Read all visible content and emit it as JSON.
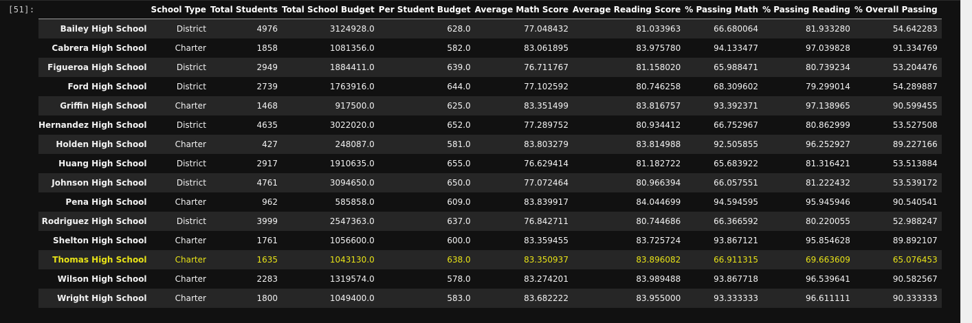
{
  "prompt": "[51]:",
  "table": {
    "index_header": "",
    "columns": [
      "School Type",
      "Total Students",
      "Total School Budget",
      "Per Student Budget",
      "Average Math Score",
      "Average Reading Score",
      "% Passing Math",
      "% Passing Reading",
      "% Overall Passing"
    ],
    "rows": [
      {
        "school": "Bailey High School",
        "type": "District",
        "students": "4976",
        "budget": "3124928.0",
        "per_student": "628.0",
        "math": "77.048432",
        "reading": "81.033963",
        "pass_math": "66.680064",
        "pass_reading": "81.933280",
        "overall": "54.642283"
      },
      {
        "school": "Cabrera High School",
        "type": "Charter",
        "students": "1858",
        "budget": "1081356.0",
        "per_student": "582.0",
        "math": "83.061895",
        "reading": "83.975780",
        "pass_math": "94.133477",
        "pass_reading": "97.039828",
        "overall": "91.334769"
      },
      {
        "school": "Figueroa High School",
        "type": "District",
        "students": "2949",
        "budget": "1884411.0",
        "per_student": "639.0",
        "math": "76.711767",
        "reading": "81.158020",
        "pass_math": "65.988471",
        "pass_reading": "80.739234",
        "overall": "53.204476"
      },
      {
        "school": "Ford High School",
        "type": "District",
        "students": "2739",
        "budget": "1763916.0",
        "per_student": "644.0",
        "math": "77.102592",
        "reading": "80.746258",
        "pass_math": "68.309602",
        "pass_reading": "79.299014",
        "overall": "54.289887"
      },
      {
        "school": "Griffin High School",
        "type": "Charter",
        "students": "1468",
        "budget": "917500.0",
        "per_student": "625.0",
        "math": "83.351499",
        "reading": "83.816757",
        "pass_math": "93.392371",
        "pass_reading": "97.138965",
        "overall": "90.599455"
      },
      {
        "school": "Hernandez High School",
        "type": "District",
        "students": "4635",
        "budget": "3022020.0",
        "per_student": "652.0",
        "math": "77.289752",
        "reading": "80.934412",
        "pass_math": "66.752967",
        "pass_reading": "80.862999",
        "overall": "53.527508"
      },
      {
        "school": "Holden High School",
        "type": "Charter",
        "students": "427",
        "budget": "248087.0",
        "per_student": "581.0",
        "math": "83.803279",
        "reading": "83.814988",
        "pass_math": "92.505855",
        "pass_reading": "96.252927",
        "overall": "89.227166"
      },
      {
        "school": "Huang High School",
        "type": "District",
        "students": "2917",
        "budget": "1910635.0",
        "per_student": "655.0",
        "math": "76.629414",
        "reading": "81.182722",
        "pass_math": "65.683922",
        "pass_reading": "81.316421",
        "overall": "53.513884"
      },
      {
        "school": "Johnson High School",
        "type": "District",
        "students": "4761",
        "budget": "3094650.0",
        "per_student": "650.0",
        "math": "77.072464",
        "reading": "80.966394",
        "pass_math": "66.057551",
        "pass_reading": "81.222432",
        "overall": "53.539172"
      },
      {
        "school": "Pena High School",
        "type": "Charter",
        "students": "962",
        "budget": "585858.0",
        "per_student": "609.0",
        "math": "83.839917",
        "reading": "84.044699",
        "pass_math": "94.594595",
        "pass_reading": "95.945946",
        "overall": "90.540541"
      },
      {
        "school": "Rodriguez High School",
        "type": "District",
        "students": "3999",
        "budget": "2547363.0",
        "per_student": "637.0",
        "math": "76.842711",
        "reading": "80.744686",
        "pass_math": "66.366592",
        "pass_reading": "80.220055",
        "overall": "52.988247"
      },
      {
        "school": "Shelton High School",
        "type": "Charter",
        "students": "1761",
        "budget": "1056600.0",
        "per_student": "600.0",
        "math": "83.359455",
        "reading": "83.725724",
        "pass_math": "93.867121",
        "pass_reading": "95.854628",
        "overall": "89.892107"
      },
      {
        "school": "Thomas High School",
        "type": "Charter",
        "students": "1635",
        "budget": "1043130.0",
        "per_student": "638.0",
        "math": "83.350937",
        "reading": "83.896082",
        "pass_math": "66.911315",
        "pass_reading": "69.663609",
        "overall": "65.076453"
      },
      {
        "school": "Wilson High School",
        "type": "Charter",
        "students": "2283",
        "budget": "1319574.0",
        "per_student": "578.0",
        "math": "83.274201",
        "reading": "83.989488",
        "pass_math": "93.867718",
        "pass_reading": "96.539641",
        "overall": "90.582567"
      },
      {
        "school": "Wright High School",
        "type": "Charter",
        "students": "1800",
        "budget": "1049400.0",
        "per_student": "583.0",
        "math": "83.682222",
        "reading": "83.955000",
        "pass_math": "93.333333",
        "pass_reading": "96.611111",
        "overall": "90.333333"
      }
    ],
    "highlighted_school": "Thomas High School",
    "highlight_color": "#e8e317"
  }
}
